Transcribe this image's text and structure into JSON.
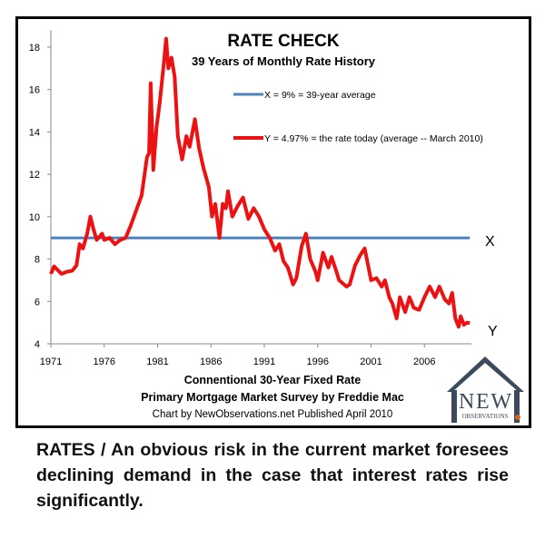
{
  "chart_data": {
    "type": "line",
    "title": "RATE CHECK",
    "subtitle": "39 Years of Monthly Rate History",
    "xlabel_lines": [
      "Connentional 30-Year Fixed Rate",
      "Primary Mortgage Market Survey by Freddie Mac"
    ],
    "credit": "Chart by NewObservations.net  Published April 2010",
    "xlim": [
      1971,
      2010.25
    ],
    "ylim": [
      4,
      18.8
    ],
    "x_ticks": [
      "1971",
      "1976",
      "1981",
      "1986",
      "1991",
      "1996",
      "2001",
      "2006"
    ],
    "y_ticks": [
      "4",
      "6",
      "8",
      "10",
      "12",
      "14",
      "16",
      "18"
    ],
    "grid": false,
    "legend_position": "top-right",
    "series": [
      {
        "name": "X = 9% = 39-year average",
        "color": "#4f81bd",
        "values": [
          [
            1971,
            9
          ],
          [
            2010.25,
            9
          ]
        ],
        "end_label": "X"
      },
      {
        "name": "Y = 4.97% = the rate today (average -- March 2010)",
        "color": "#ee1111",
        "end_label": "Y",
        "values": [
          [
            1971.0,
            7.3
          ],
          [
            1971.3,
            7.65
          ],
          [
            1971.8,
            7.4
          ],
          [
            1972.0,
            7.3
          ],
          [
            1972.5,
            7.4
          ],
          [
            1973.0,
            7.45
          ],
          [
            1973.4,
            7.7
          ],
          [
            1973.7,
            8.7
          ],
          [
            1974.0,
            8.5
          ],
          [
            1974.4,
            9.2
          ],
          [
            1974.7,
            10.0
          ],
          [
            1975.0,
            9.4
          ],
          [
            1975.3,
            8.9
          ],
          [
            1975.8,
            9.2
          ],
          [
            1976.0,
            8.9
          ],
          [
            1976.5,
            9.0
          ],
          [
            1977.0,
            8.7
          ],
          [
            1977.5,
            8.9
          ],
          [
            1978.0,
            9.0
          ],
          [
            1978.5,
            9.6
          ],
          [
            1979.0,
            10.3
          ],
          [
            1979.5,
            11.0
          ],
          [
            1980.0,
            12.8
          ],
          [
            1980.2,
            13.0
          ],
          [
            1980.35,
            16.3
          ],
          [
            1980.6,
            12.2
          ],
          [
            1980.9,
            14.2
          ],
          [
            1981.2,
            15.4
          ],
          [
            1981.6,
            17.3
          ],
          [
            1981.8,
            18.4
          ],
          [
            1982.0,
            17.0
          ],
          [
            1982.3,
            17.5
          ],
          [
            1982.6,
            16.6
          ],
          [
            1982.9,
            13.8
          ],
          [
            1983.3,
            12.7
          ],
          [
            1983.7,
            13.8
          ],
          [
            1984.0,
            13.3
          ],
          [
            1984.5,
            14.6
          ],
          [
            1984.9,
            13.2
          ],
          [
            1985.3,
            12.3
          ],
          [
            1985.8,
            11.4
          ],
          [
            1986.1,
            10.0
          ],
          [
            1986.4,
            10.6
          ],
          [
            1986.8,
            9.0
          ],
          [
            1987.1,
            10.6
          ],
          [
            1987.4,
            10.4
          ],
          [
            1987.6,
            11.2
          ],
          [
            1988.0,
            10.0
          ],
          [
            1988.5,
            10.5
          ],
          [
            1989.0,
            10.9
          ],
          [
            1989.5,
            9.9
          ],
          [
            1990.0,
            10.4
          ],
          [
            1990.5,
            10.0
          ],
          [
            1991.0,
            9.4
          ],
          [
            1991.5,
            9.0
          ],
          [
            1992.0,
            8.4
          ],
          [
            1992.4,
            8.7
          ],
          [
            1992.8,
            7.9
          ],
          [
            1993.2,
            7.6
          ],
          [
            1993.7,
            6.8
          ],
          [
            1994.0,
            7.1
          ],
          [
            1994.5,
            8.6
          ],
          [
            1994.9,
            9.2
          ],
          [
            1995.3,
            8.0
          ],
          [
            1995.8,
            7.4
          ],
          [
            1996.0,
            7.0
          ],
          [
            1996.5,
            8.3
          ],
          [
            1997.0,
            7.6
          ],
          [
            1997.3,
            8.1
          ],
          [
            1997.7,
            7.5
          ],
          [
            1998.0,
            7.0
          ],
          [
            1998.7,
            6.7
          ],
          [
            1999.0,
            6.8
          ],
          [
            1999.5,
            7.7
          ],
          [
            2000.0,
            8.2
          ],
          [
            2000.4,
            8.5
          ],
          [
            2001.0,
            7.0
          ],
          [
            2001.5,
            7.1
          ],
          [
            2002.0,
            6.7
          ],
          [
            2002.3,
            7.0
          ],
          [
            2002.7,
            6.2
          ],
          [
            2003.0,
            5.9
          ],
          [
            2003.4,
            5.2
          ],
          [
            2003.7,
            6.2
          ],
          [
            2004.2,
            5.5
          ],
          [
            2004.6,
            6.2
          ],
          [
            2005.0,
            5.7
          ],
          [
            2005.5,
            5.6
          ],
          [
            2006.0,
            6.2
          ],
          [
            2006.5,
            6.7
          ],
          [
            2007.0,
            6.2
          ],
          [
            2007.4,
            6.7
          ],
          [
            2007.9,
            6.1
          ],
          [
            2008.3,
            5.9
          ],
          [
            2008.6,
            6.4
          ],
          [
            2008.9,
            5.2
          ],
          [
            2009.2,
            4.8
          ],
          [
            2009.4,
            5.3
          ],
          [
            2009.7,
            4.9
          ],
          [
            2010.0,
            5.0
          ],
          [
            2010.25,
            4.97
          ]
        ]
      }
    ]
  },
  "logo": {
    "text": "NEW OBSERVATIONS .NET"
  },
  "caption": "RATES / An obvious risk in the current market foresees declining demand in the case that interest rates rise significantly."
}
